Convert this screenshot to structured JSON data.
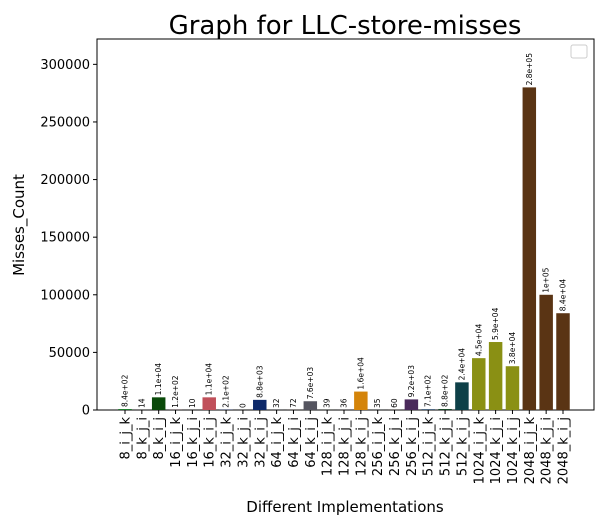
{
  "chart_data": {
    "type": "bar",
    "title": "Graph for LLC-store-misses",
    "xlabel": "Different Implementations",
    "ylabel": "Misses_Count",
    "ylim": [
      0,
      322000
    ],
    "yticks": [
      0,
      50000,
      100000,
      150000,
      200000,
      250000,
      300000
    ],
    "ytick_labels": [
      "0",
      "50000",
      "100000",
      "150000",
      "200000",
      "250000",
      "300000"
    ],
    "legend": "top-right (empty)",
    "grid": false,
    "categories": [
      "8_i_j_k",
      "8_k_j_i",
      "8_k_i_j",
      "16_i_j_k",
      "16_k_j_i",
      "16_k_i_j",
      "32_i_j_k",
      "32_k_j_i",
      "32_k_i_j",
      "64_i_j_k",
      "64_k_j_i",
      "64_k_i_j",
      "128_i_j_k",
      "128_k_j_i",
      "128_k_i_j",
      "256_i_j_k",
      "256_k_j_i",
      "256_k_i_j",
      "512_i_j_k",
      "512_k_j_i",
      "512_k_i_j",
      "1024_i_j_k",
      "1024_k_j_i",
      "1024_k_i_j",
      "2048_i_j_k",
      "2048_k_j_i",
      "2048_k_i_j"
    ],
    "values": [
      840,
      14,
      11000,
      120,
      10,
      11000,
      210,
      0,
      8800,
      32,
      72,
      7600,
      39,
      36,
      16000,
      35,
      60,
      9200,
      710,
      880,
      24000,
      45000,
      59000,
      38000,
      280000,
      100000,
      84000
    ],
    "data_labels": [
      "8.4e+02",
      "14",
      "1.1e+04",
      "1.2e+02",
      "10",
      "1.1e+04",
      "2.1e+02",
      "0",
      "8.8e+03",
      "32",
      "72",
      "7.6e+03",
      "39",
      "36",
      "1.6e+04",
      "35",
      "60",
      "9.2e+03",
      "7.1e+02",
      "8.8e+02",
      "2.4e+04",
      "4.5e+04",
      "5.9e+04",
      "3.8e+04",
      "2.8e+05",
      "1e+05",
      "8.4e+04"
    ],
    "colors": [
      "#1a7a2a",
      "#6b6bb0",
      "#0a4a0a",
      "#7a3a4a",
      "#7a4a1a",
      "#c0505a",
      "#1a3a8a",
      "#a0a0a0",
      "#0e2a6a",
      "#5a7a9a",
      "#8a5a4a",
      "#555560",
      "#4a6a2a",
      "#6a5a8a",
      "#d4840a",
      "#1a5a6a",
      "#7a6a3a",
      "#4a2a5a",
      "#2a4a6a",
      "#1a4a2a",
      "#0e4048",
      "#8a9014",
      "#8a9014",
      "#8a9014",
      "#5a3414",
      "#5a3414",
      "#5a3414"
    ]
  }
}
